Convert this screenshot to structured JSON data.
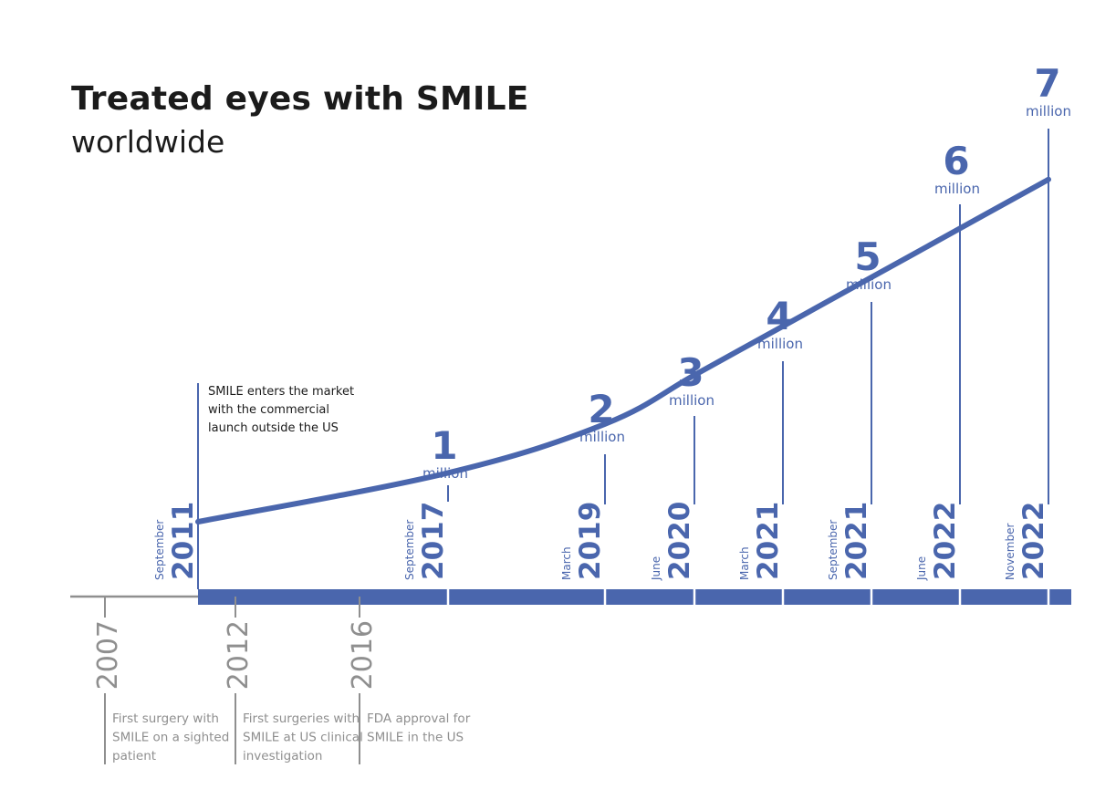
{
  "title": "Treated eyes with SMILE",
  "subtitle": "worldwide",
  "colors": {
    "accent": "#4a66ad",
    "gray": "#8f8f8f",
    "text": "#1b1b1b"
  },
  "chart_data": {
    "type": "line",
    "title": "Treated eyes with SMILE",
    "subtitle": "worldwide",
    "unit": "million",
    "series": [
      {
        "points": [
          {
            "month": "September",
            "year": "2011",
            "value": 0
          },
          {
            "month": "September",
            "year": "2017",
            "value": 1
          },
          {
            "month": "March",
            "year": "2019",
            "value": 2
          },
          {
            "month": "June",
            "year": "2020",
            "value": 3
          },
          {
            "month": "March",
            "year": "2021",
            "value": 4
          },
          {
            "month": "September",
            "year": "2021",
            "value": 5
          },
          {
            "month": "June",
            "year": "2022",
            "value": 6
          },
          {
            "month": "November",
            "year": "2022",
            "value": 7
          }
        ]
      }
    ],
    "launch_annotation": "SMILE enters the market with the commercial launch outside the US",
    "early_milestones": [
      {
        "year": "2007",
        "text": "First surgery with SMILE on a sighted patient"
      },
      {
        "year": "2012",
        "text": "First surgeries with SMILE at US clinical investigation"
      },
      {
        "year": "2016",
        "text": "FDA approval for SMILE in the US"
      }
    ]
  }
}
